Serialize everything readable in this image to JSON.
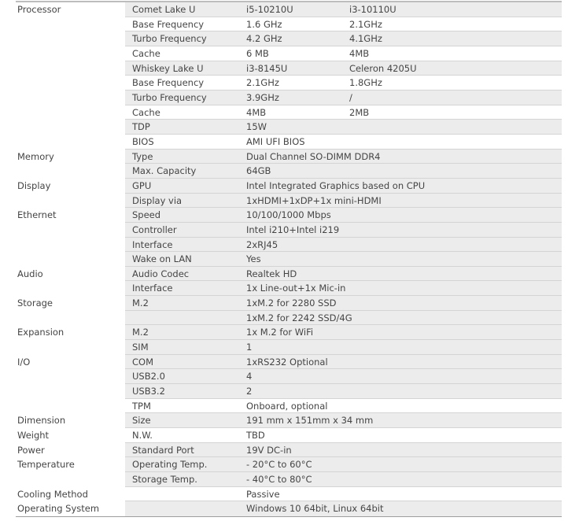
{
  "spec_rows": [
    {
      "category": "Processor",
      "item": "Comet Lake U",
      "value": "i5-10210U",
      "value2": "i3-10110U",
      "shaded": true
    },
    {
      "category": "",
      "item": "Base Frequency",
      "value": "1.6 GHz",
      "value2": "2.1GHz",
      "shaded": false
    },
    {
      "category": "",
      "item": "Turbo Frequency",
      "value": "4.2 GHz",
      "value2": "4.1GHz",
      "shaded": true
    },
    {
      "category": "",
      "item": "Cache",
      "value": "6 MB",
      "value2": "4MB",
      "shaded": false
    },
    {
      "category": "",
      "item": "Whiskey Lake U",
      "value": "i3-8145U",
      "value2": "Celeron 4205U",
      "shaded": true
    },
    {
      "category": "",
      "item": "Base Frequency",
      "value": "2.1GHz",
      "value2": "1.8GHz",
      "shaded": false
    },
    {
      "category": "",
      "item": "Turbo Frequency",
      "value": "3.9GHz",
      "value2": "/",
      "shaded": true
    },
    {
      "category": "",
      "item": "Cache",
      "value": "4MB",
      "value2": "2MB",
      "shaded": false
    },
    {
      "category": "",
      "item": "TDP",
      "value": "15W",
      "value2": "",
      "shaded": true
    },
    {
      "category": "",
      "item": "BIOS",
      "value": "AMI UFI BIOS",
      "value2": "",
      "shaded": false
    },
    {
      "category": "Memory",
      "item": "Type",
      "value": "Dual Channel SO-DIMM DDR4",
      "value2": "",
      "shaded": true
    },
    {
      "category": "",
      "item": "Max. Capacity",
      "value": "64GB",
      "value2": "",
      "shaded": true
    },
    {
      "category": "Display",
      "item": "GPU",
      "value": "Intel Integrated Graphics based on CPU",
      "value2": "",
      "shaded": true
    },
    {
      "category": "",
      "item": "Display via",
      "value": "1xHDMI+1xDP+1x mini-HDMI",
      "value2": "",
      "shaded": true
    },
    {
      "category": "Ethernet",
      "item": "Speed",
      "value": "10/100/1000 Mbps",
      "value2": "",
      "shaded": true
    },
    {
      "category": "",
      "item": "Controller",
      "value": "Intel i210+Intel i219",
      "value2": "",
      "shaded": true
    },
    {
      "category": "",
      "item": "Interface",
      "value": "2xRJ45",
      "value2": "",
      "shaded": true
    },
    {
      "category": "",
      "item": "Wake on LAN",
      "value": "Yes",
      "value2": "",
      "shaded": true
    },
    {
      "category": "Audio",
      "item": "Audio Codec",
      "value": "Realtek HD",
      "value2": "",
      "shaded": true
    },
    {
      "category": "",
      "item": "Interface",
      "value": "1x Line-out+1x Mic-in",
      "value2": "",
      "shaded": true
    },
    {
      "category": "Storage",
      "item": "M.2",
      "value": "1xM.2 for 2280 SSD",
      "value2": "",
      "shaded": true
    },
    {
      "category": "",
      "item": "",
      "value": "1xM.2 for 2242 SSD/4G",
      "value2": "",
      "shaded": true
    },
    {
      "category": "Expansion",
      "item": "M.2",
      "value": "1x M.2 for WiFi",
      "value2": "",
      "shaded": true
    },
    {
      "category": "",
      "item": "SIM",
      "value": "1",
      "value2": "",
      "shaded": true
    },
    {
      "category": "I/O",
      "item": "COM",
      "value": "1xRS232 Optional",
      "value2": "",
      "shaded": true
    },
    {
      "category": "",
      "item": "USB2.0",
      "value": "4",
      "value2": "",
      "shaded": true
    },
    {
      "category": "",
      "item": "USB3.2",
      "value": "2",
      "value2": "",
      "shaded": true
    },
    {
      "category": "",
      "item": "TPM",
      "value": "Onboard, optional",
      "value2": "",
      "shaded": false
    },
    {
      "category": "Dimension",
      "item": "Size",
      "value": "191 mm x 151mm x 34 mm",
      "value2": "",
      "shaded": true
    },
    {
      "category": "Weight",
      "item": "N.W.",
      "value": "TBD",
      "value2": "",
      "shaded": false
    },
    {
      "category": "Power",
      "item": "Standard Port",
      "value": "19V DC-in",
      "value2": "",
      "shaded": true
    },
    {
      "category": "Temperature",
      "item": "Operating Temp.",
      "value": "- 20°C to 60°C",
      "value2": "",
      "shaded": true
    },
    {
      "category": "",
      "item": "Storage Temp.",
      "value": "- 40°C to 80°C",
      "value2": "",
      "shaded": true
    },
    {
      "category": "Cooling Method",
      "item": "",
      "value": "Passive",
      "value2": "",
      "shaded": false
    },
    {
      "category": "Operating System",
      "item": "",
      "value": "Windows 10 64bit, Linux 64bit",
      "value2": "",
      "shaded": true
    }
  ],
  "colors": {
    "shade": "#ececec",
    "text": "#454545",
    "rule": "#bdbdbd"
  }
}
